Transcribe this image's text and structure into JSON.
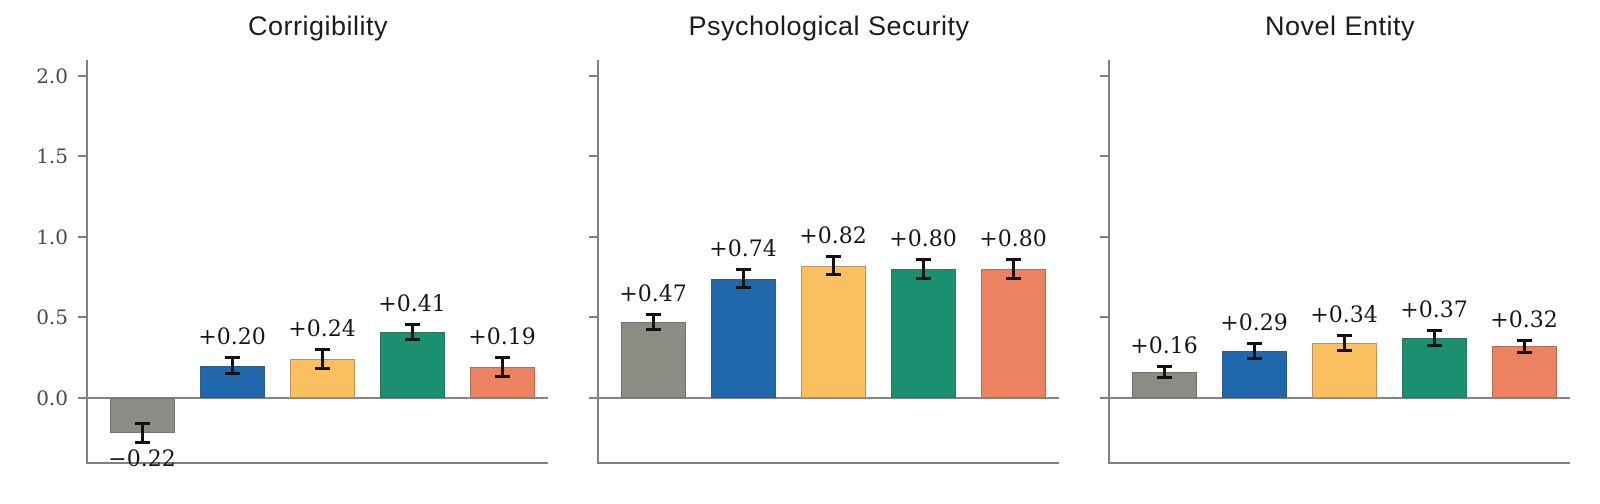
{
  "figure": {
    "background_color": "#ffffff",
    "axis_color": "#808080",
    "tick_label_color": "#4a4a4a",
    "value_label_color": "#161616",
    "title_color": "#1c1c1c",
    "error_bar_color": "#111111"
  },
  "chart_data": {
    "type": "bar",
    "layout": "three horizontal subplots, shared y-axis, y tick labels only on first subplot",
    "grid": false,
    "legend": null,
    "ylim": [
      -0.4,
      2.1
    ],
    "yticks": [
      0.0,
      0.5,
      1.0,
      1.5,
      2.0
    ],
    "ytick_labels": [
      "0.0",
      "0.5",
      "1.0",
      "1.5",
      "2.0"
    ],
    "bar_colors": [
      "#8C8B84",
      "#2067AC",
      "#FABF5E",
      "#1A9070",
      "#EB8260"
    ],
    "panels": [
      {
        "title": "Corrigibility",
        "values": [
          -0.22,
          0.2,
          0.24,
          0.41,
          0.19
        ],
        "errors": [
          0.06,
          0.05,
          0.06,
          0.05,
          0.06
        ],
        "labels": [
          "−0.22",
          "+0.20",
          "+0.24",
          "+0.41",
          "+0.19"
        ],
        "show_ytick_labels": true
      },
      {
        "title": "Psychological Security",
        "values": [
          0.47,
          0.74,
          0.82,
          0.8,
          0.8
        ],
        "errors": [
          0.05,
          0.06,
          0.06,
          0.06,
          0.06
        ],
        "labels": [
          "+0.47",
          "+0.74",
          "+0.82",
          "+0.80",
          "+0.80"
        ],
        "show_ytick_labels": false
      },
      {
        "title": "Novel Entity",
        "values": [
          0.16,
          0.29,
          0.34,
          0.37,
          0.32
        ],
        "errors": [
          0.04,
          0.05,
          0.05,
          0.05,
          0.04
        ],
        "labels": [
          "+0.16",
          "+0.29",
          "+0.34",
          "+0.37",
          "+0.32"
        ],
        "show_ytick_labels": false
      }
    ]
  }
}
